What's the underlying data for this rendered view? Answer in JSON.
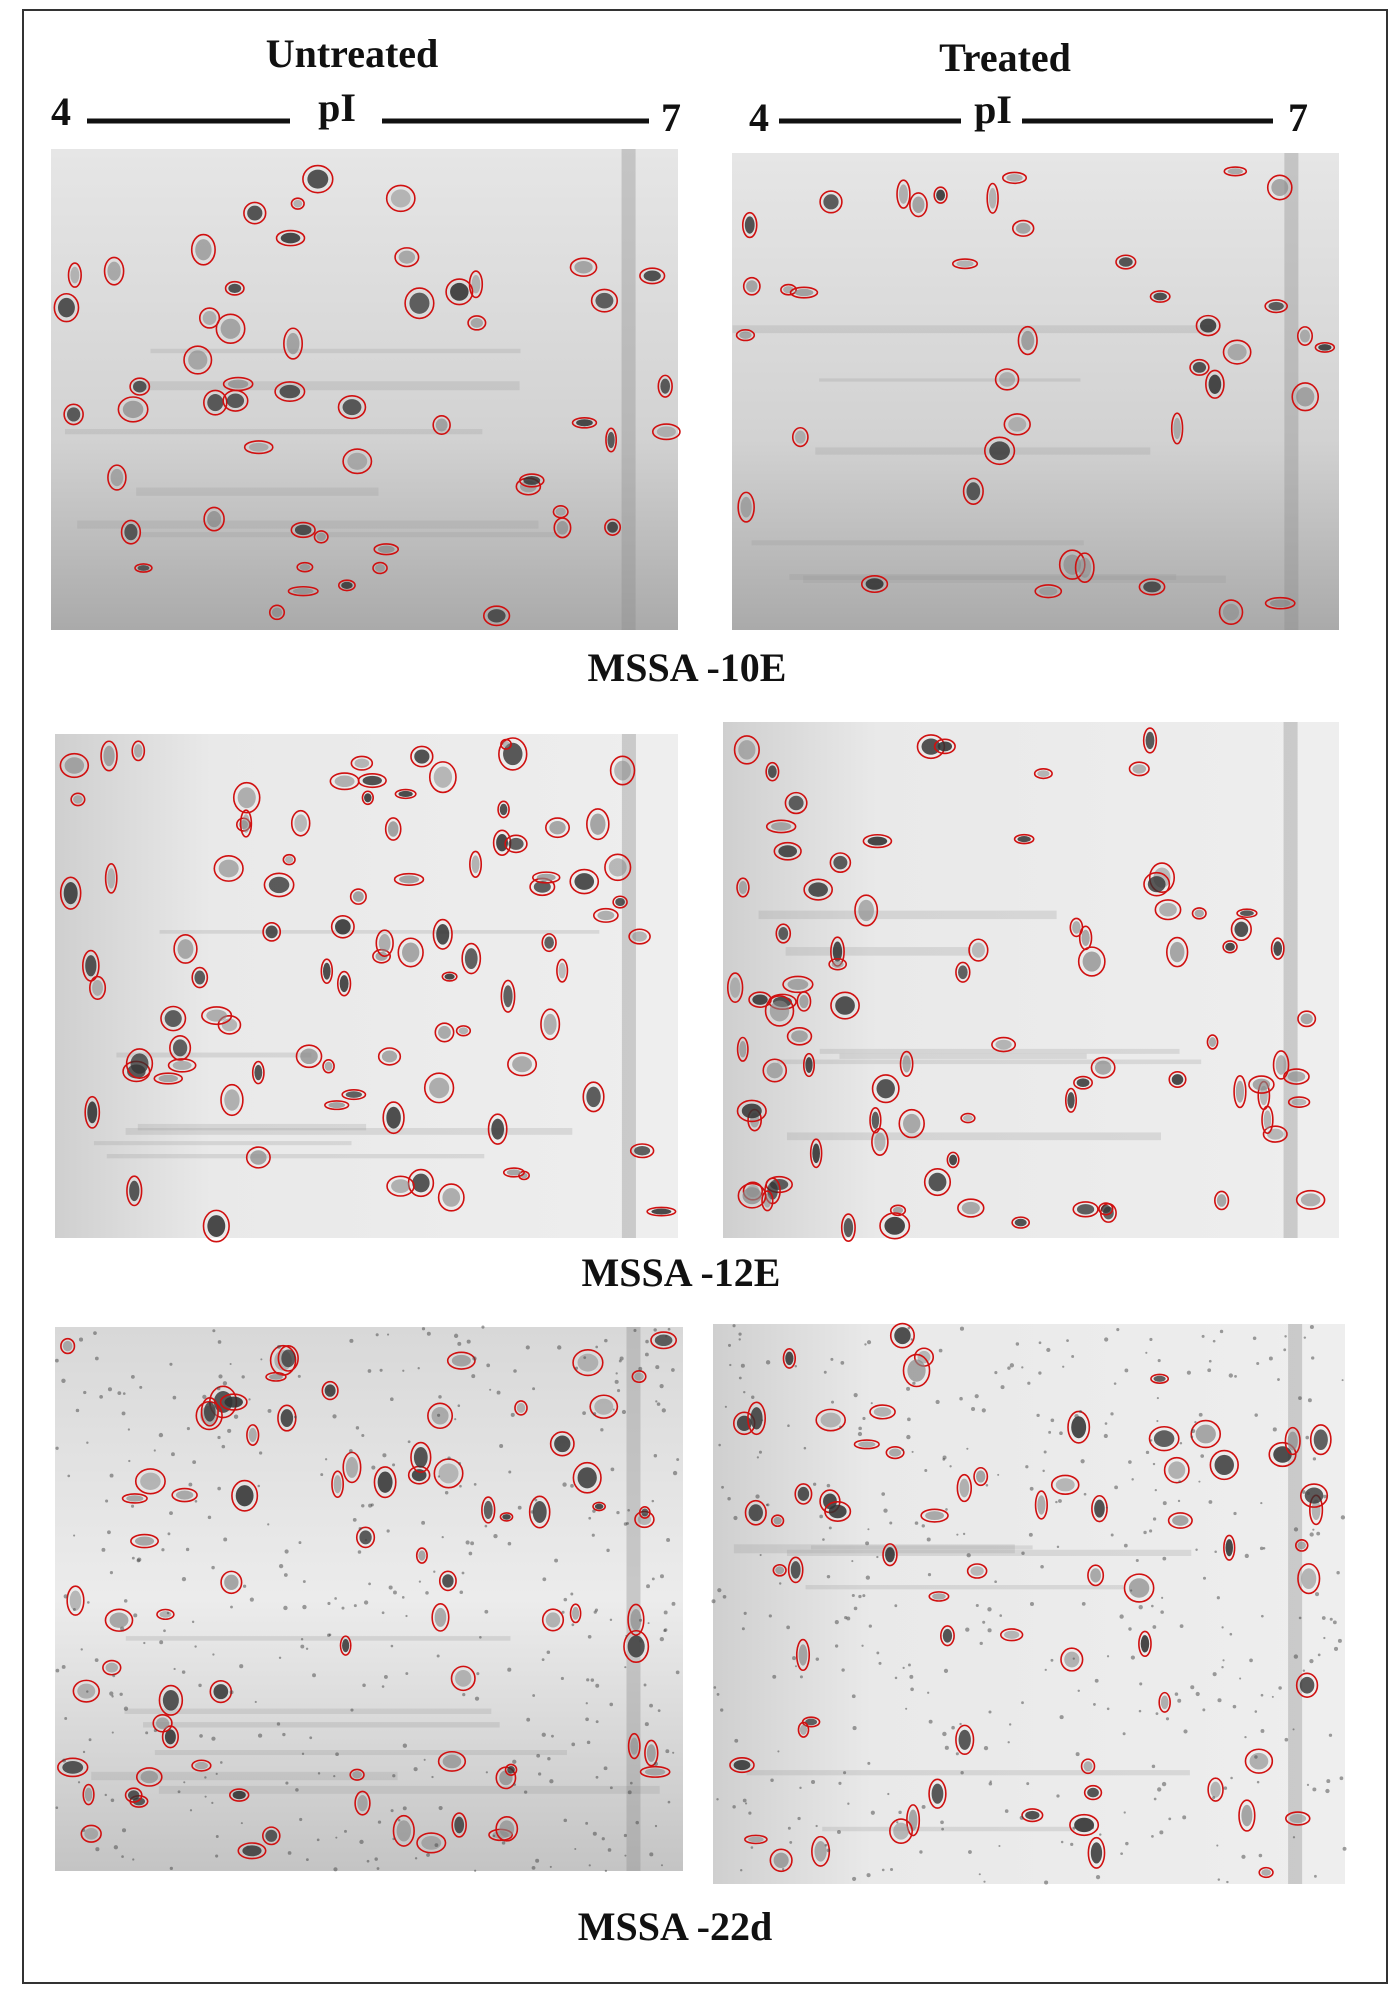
{
  "header": {
    "left_title": "Untreated",
    "right_title": "Treated"
  },
  "axes": {
    "left": {
      "min": 4,
      "label": "pI",
      "max": 7
    },
    "right": {
      "min": 4,
      "label": "pI",
      "max": 7
    }
  },
  "panels": [
    {
      "label": "MSSA -10E"
    },
    {
      "label": "MSSA -12E"
    },
    {
      "label": "MSSA -22d"
    }
  ]
}
